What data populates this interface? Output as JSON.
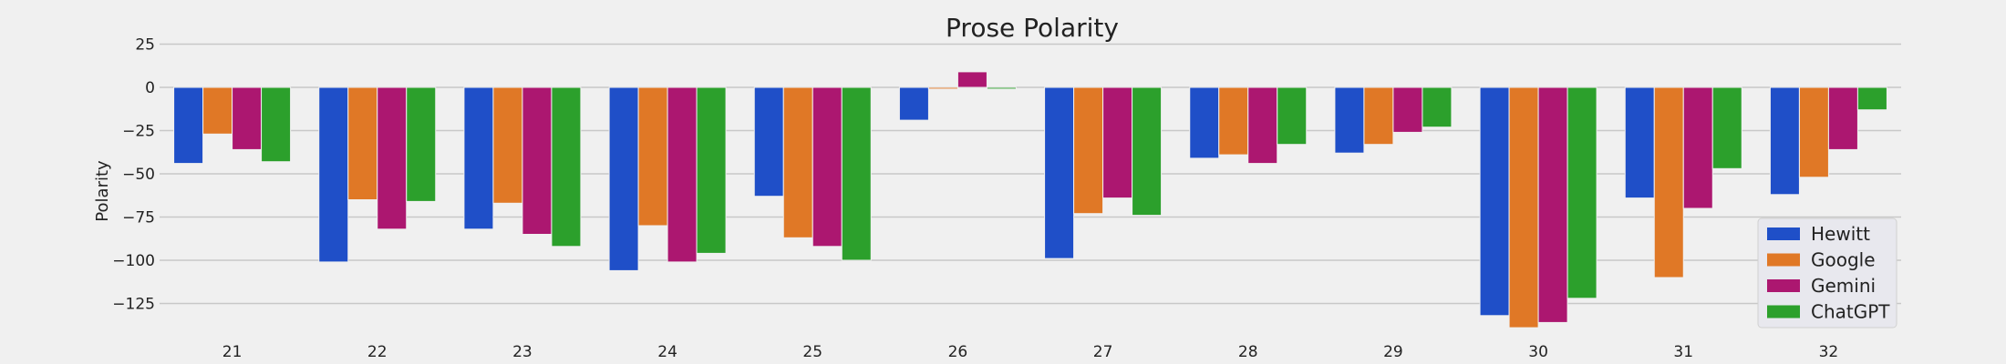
{
  "chart_data": {
    "type": "bar",
    "title": "Prose Polarity",
    "xlabel": "",
    "ylabel": "Polarity",
    "ylim": [
      -145,
      25
    ],
    "yticks": [
      25,
      0,
      -25,
      -50,
      -75,
      -100,
      -125
    ],
    "ytick_labels": [
      "25",
      "0",
      "−25",
      "−50",
      "−75",
      "−100",
      "−125"
    ],
    "grid": "horizontal",
    "legend_position": "lower-right",
    "categories": [
      "21",
      "22",
      "23",
      "24",
      "25",
      "26",
      "27",
      "28",
      "29",
      "30",
      "31",
      "32"
    ],
    "series": [
      {
        "name": "Hewitt",
        "color": "#1f4fc8",
        "values": [
          -44,
          -101,
          -82,
          -106,
          -63,
          -19,
          -99,
          -41,
          -38,
          -132,
          -64,
          -62
        ]
      },
      {
        "name": "Google",
        "color": "#e07826",
        "values": [
          -27,
          -65,
          -67,
          -80,
          -87,
          -1,
          -73,
          -39,
          -33,
          -139,
          -110,
          -52
        ]
      },
      {
        "name": "Gemini",
        "color": "#ac1770",
        "values": [
          -36,
          -82,
          -85,
          -101,
          -92,
          9,
          -64,
          -44,
          -26,
          -136,
          -70,
          -36
        ]
      },
      {
        "name": "ChatGPT",
        "color": "#2ca02c",
        "values": [
          -43,
          -66,
          -92,
          -96,
          -100,
          -1,
          -74,
          -33,
          -23,
          -122,
          -47,
          -13
        ]
      }
    ]
  }
}
